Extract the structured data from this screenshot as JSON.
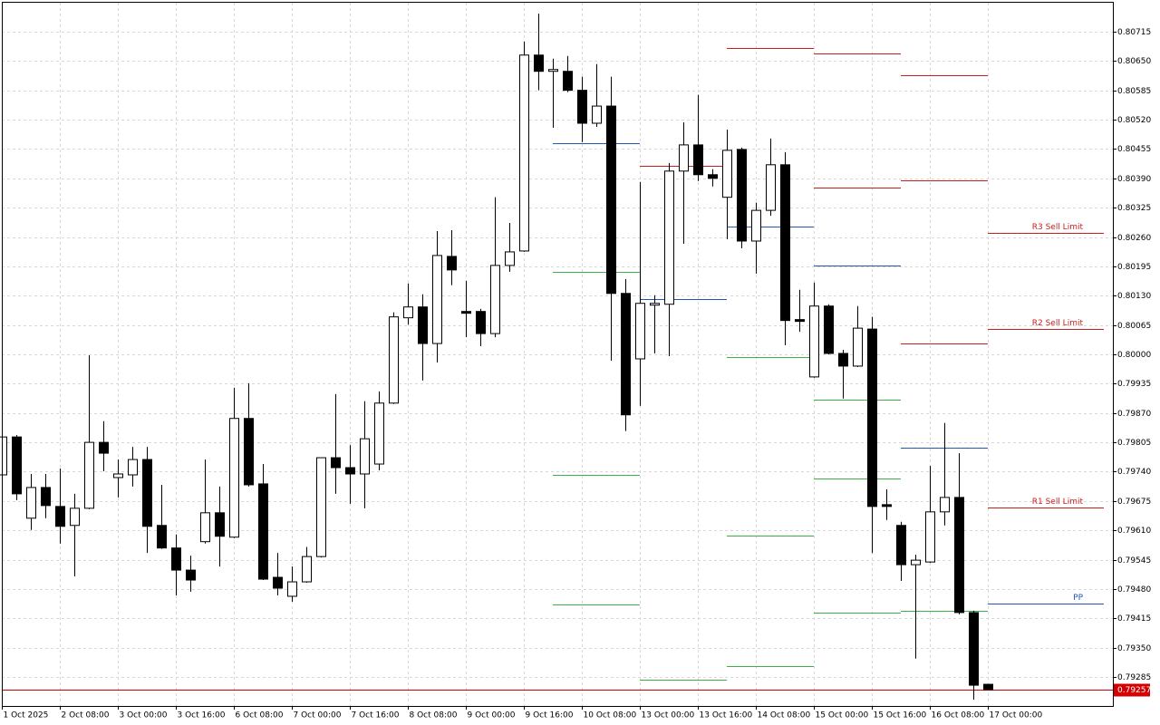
{
  "chart_data": {
    "type": "candlestick",
    "categories": [
      "1 Oct 2025",
      null,
      null,
      null,
      "2 Oct 08:00",
      null,
      null,
      null,
      "3 Oct 00:00",
      null,
      null,
      null,
      "3 Oct 16:00",
      null,
      null,
      null,
      "6 Oct 08:00",
      null,
      null,
      null,
      "7 Oct 00:00",
      null,
      null,
      null,
      "7 Oct 16:00",
      null,
      null,
      null,
      "8 Oct 08:00",
      null,
      null,
      null,
      "9 Oct 00:00",
      null,
      null,
      null,
      "9 Oct 16:00",
      null,
      null,
      null,
      "10 Oct 08:00",
      null,
      null,
      null,
      "13 Oct 00:00",
      null,
      null,
      null,
      "13 Oct 16:00",
      null,
      null,
      null,
      "14 Oct 08:00",
      null,
      null,
      null,
      "15 Oct 00:00",
      null,
      null,
      null,
      "15 Oct 16:00",
      null,
      null,
      null,
      "16 Oct 08:00",
      null,
      null,
      null,
      "17 Oct 00:00"
    ],
    "open": [
      0.79733,
      0.79817,
      0.79637,
      0.79705,
      0.79663,
      0.79621,
      0.79659,
      0.79805,
      0.79727,
      0.79733,
      0.79767,
      0.79621,
      0.79571,
      0.79522,
      0.79585,
      0.79649,
      0.79595,
      0.79858,
      0.79713,
      0.79506,
      0.79464,
      0.79496,
      0.79552,
      0.79771,
      0.79749,
      0.79735,
      0.79757,
      0.79892,
      0.80081,
      0.80105,
      0.80024,
      0.80217,
      0.80095,
      0.80095,
      0.80046,
      0.80197,
      0.80229,
      0.80663,
      0.80627,
      0.80627,
      0.80585,
      0.80512,
      0.8055,
      0.80135,
      0.7999,
      0.80109,
      0.80111,
      0.80406,
      0.80464,
      0.80398,
      0.80348,
      0.80454,
      0.80251,
      0.80319,
      0.8042,
      0.80077,
      0.7995,
      0.80107,
      0.80002,
      0.79974,
      0.80056,
      0.79667,
      0.79621,
      0.79534,
      0.7954,
      0.79651,
      0.79683,
      0.79428,
      0.79269
    ],
    "high": [
      0.79821,
      0.79821,
      0.79735,
      0.79735,
      0.79747,
      0.79691,
      0.79998,
      0.79852,
      0.79767,
      0.79795,
      0.79795,
      0.79711,
      0.79601,
      0.79554,
      0.79767,
      0.79707,
      0.79926,
      0.79936,
      0.79757,
      0.7956,
      0.7953,
      0.79573,
      0.79771,
      0.79912,
      0.79799,
      0.79896,
      0.79918,
      0.80093,
      0.80157,
      0.80133,
      0.80273,
      0.80275,
      0.80163,
      0.80101,
      0.80348,
      0.80291,
      0.80693,
      0.80755,
      0.80655,
      0.80661,
      0.80615,
      0.80643,
      0.80615,
      0.80167,
      0.80382,
      0.80131,
      0.80424,
      0.80514,
      0.80575,
      0.8041,
      0.80498,
      0.80458,
      0.80336,
      0.80478,
      0.80448,
      0.80143,
      0.80159,
      0.80111,
      0.8001,
      0.80107,
      0.80083,
      0.79701,
      0.79629,
      0.79556,
      0.79753,
      0.79848,
      0.79781,
      0.79432,
      0.79269
    ],
    "low": [
      0.79729,
      0.79677,
      0.79611,
      0.79637,
      0.79581,
      0.79508,
      0.79657,
      0.79741,
      0.79683,
      0.79707,
      0.7956,
      0.79569,
      0.79466,
      0.79474,
      0.79581,
      0.7953,
      0.79593,
      0.79707,
      0.795,
      0.79466,
      0.79452,
      0.79494,
      0.7955,
      0.79691,
      0.79669,
      0.79659,
      0.79743,
      0.7989,
      0.80066,
      0.79942,
      0.79982,
      0.80153,
      0.80038,
      0.80018,
      0.80038,
      0.80183,
      0.80227,
      0.80585,
      0.80502,
      0.80581,
      0.8047,
      0.80504,
      0.79986,
      0.7983,
      0.79886,
      0.80002,
      0.79996,
      0.80245,
      0.80384,
      0.80372,
      0.80255,
      0.80235,
      0.80179,
      0.80307,
      0.8002,
      0.8005,
      0.79948,
      0.8,
      0.79902,
      0.79972,
      0.7956,
      0.79633,
      0.79498,
      0.79326,
      0.79538,
      0.79621,
      0.79424,
      0.79235,
      0.79257
    ],
    "close": [
      0.79817,
      0.79691,
      0.79705,
      0.79665,
      0.79619,
      0.79659,
      0.79805,
      0.79781,
      0.79735,
      0.79767,
      0.79619,
      0.79571,
      0.79522,
      0.795,
      0.79649,
      0.79597,
      0.79858,
      0.79711,
      0.79502,
      0.79482,
      0.79496,
      0.79552,
      0.79771,
      0.79749,
      0.79735,
      0.79813,
      0.79892,
      0.80083,
      0.80105,
      0.80024,
      0.80219,
      0.80187,
      0.80091,
      0.80046,
      0.80197,
      0.80227,
      0.80663,
      0.80627,
      0.80631,
      0.80585,
      0.80512,
      0.8055,
      0.80135,
      0.79866,
      0.80113,
      0.80113,
      0.80406,
      0.80464,
      0.80398,
      0.8039,
      0.80452,
      0.80251,
      0.80319,
      0.8042,
      0.80075,
      0.80073,
      0.80107,
      0.80002,
      0.79974,
      0.80058,
      0.79663,
      0.79663,
      0.79534,
      0.79544,
      0.79651,
      0.79683,
      0.79428,
      0.79267,
      0.79257
    ],
    "up_color": "#ffffff",
    "down_color": "#000000",
    "ylim": [
      0.79221,
      0.80779
    ],
    "yticks": [
      0.80715,
      {
        "value": 0.8065,
        "label": "0.80650"
      },
      0.80585,
      {
        "value": 0.8052,
        "label": "0.80520"
      },
      0.80455,
      {
        "value": 0.8039,
        "label": "0.80390"
      },
      0.80325,
      {
        "value": 0.8026,
        "label": "0.80260"
      },
      0.80195,
      {
        "value": 0.8013,
        "label": "0.80130"
      },
      0.80065,
      {
        "value": 0.8,
        "label": "0.80000"
      },
      0.79935,
      {
        "value": 0.7987,
        "label": "0.79870"
      },
      0.79805,
      {
        "value": 0.7974,
        "label": "0.79740"
      },
      0.79675,
      {
        "value": 0.7961,
        "label": "0.79610"
      },
      0.79545,
      {
        "value": 0.7948,
        "label": "0.79480"
      },
      0.79415,
      {
        "value": 0.7935,
        "label": "0.79350"
      },
      0.79285
    ],
    "grid": true,
    "last_price": 0.79257,
    "last_price_color": "#d40000",
    "levels": [
      {
        "from": 38,
        "to": 44,
        "value": 0.80468,
        "color": "#2456b4"
      },
      {
        "from": 38,
        "to": 44,
        "value": 0.80183,
        "color": "#3cb043"
      },
      {
        "from": 38,
        "to": 44,
        "value": 0.79733,
        "color": "#3cb043"
      },
      {
        "from": 38,
        "to": 44,
        "value": 0.79446,
        "color": "#3cb043"
      },
      {
        "from": 44,
        "to": 50,
        "value": 0.80418,
        "color": "#c81e1e"
      },
      {
        "from": 44,
        "to": 50,
        "value": 0.80123,
        "color": "#2456b4"
      },
      {
        "from": 44,
        "to": 50,
        "value": 0.79279,
        "color": "#3cb043"
      },
      {
        "from": 50,
        "to": 56,
        "value": 0.80679,
        "color": "#c81e1e"
      },
      {
        "from": 50,
        "to": 56,
        "value": 0.80283,
        "color": "#2456b4"
      },
      {
        "from": 50,
        "to": 56,
        "value": 0.79994,
        "color": "#3cb043"
      },
      {
        "from": 50,
        "to": 56,
        "value": 0.79599,
        "color": "#3cb043"
      },
      {
        "from": 50,
        "to": 56,
        "value": 0.79309,
        "color": "#3cb043"
      },
      {
        "from": 56,
        "to": 62,
        "value": 0.80667,
        "color": "#c81e1e"
      },
      {
        "from": 56,
        "to": 62,
        "value": 0.8037,
        "color": "#c81e1e"
      },
      {
        "from": 56,
        "to": 62,
        "value": 0.80197,
        "color": "#2456b4"
      },
      {
        "from": 56,
        "to": 62,
        "value": 0.799,
        "color": "#3cb043"
      },
      {
        "from": 56,
        "to": 62,
        "value": 0.79725,
        "color": "#3cb043"
      },
      {
        "from": 56,
        "to": 62,
        "value": 0.79428,
        "color": "#3cb043"
      },
      {
        "from": 62,
        "to": 68,
        "value": 0.80619,
        "color": "#c81e1e"
      },
      {
        "from": 62,
        "to": 68,
        "value": 0.80386,
        "color": "#c81e1e"
      },
      {
        "from": 62,
        "to": 68,
        "value": 0.80024,
        "color": "#c81e1e"
      },
      {
        "from": 62,
        "to": 68,
        "value": 0.79793,
        "color": "#2456b4"
      },
      {
        "from": 62,
        "to": 68,
        "value": 0.79432,
        "color": "#3cb043"
      },
      {
        "from": 68,
        "to": 76,
        "value": 0.80269,
        "color": "#c81e1e",
        "label": "R3 Sell Limit"
      },
      {
        "from": 68,
        "to": 76,
        "value": 0.80056,
        "color": "#c81e1e",
        "label": "R2 Sell Limit"
      },
      {
        "from": 68,
        "to": 76,
        "value": 0.79661,
        "color": "#c81e1e",
        "label": "R1 Sell Limit"
      },
      {
        "from": 68,
        "to": 76,
        "value": 0.79448,
        "color": "#2456b4",
        "label": "PP"
      }
    ]
  }
}
